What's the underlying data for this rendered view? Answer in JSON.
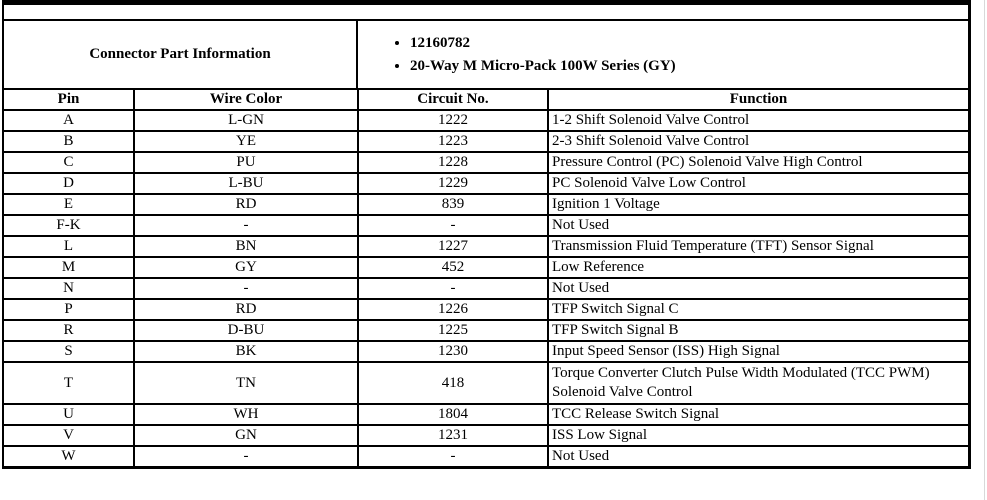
{
  "connector_info": {
    "label": "Connector Part Information",
    "bullets": [
      "12160782",
      "20-Way M Micro-Pack 100W Series (GY)"
    ]
  },
  "pinout": {
    "columns": [
      "Pin",
      "Wire Color",
      "Circuit No.",
      "Function"
    ],
    "rows": [
      {
        "pin": "A",
        "wire_color": "L-GN",
        "circuit_no": "1222",
        "function": "1-2 Shift Solenoid Valve Control"
      },
      {
        "pin": "B",
        "wire_color": "YE",
        "circuit_no": "1223",
        "function": "2-3 Shift Solenoid Valve Control"
      },
      {
        "pin": "C",
        "wire_color": "PU",
        "circuit_no": "1228",
        "function": "Pressure Control (PC) Solenoid Valve High Control"
      },
      {
        "pin": "D",
        "wire_color": "L-BU",
        "circuit_no": "1229",
        "function": "PC Solenoid Valve Low Control"
      },
      {
        "pin": "E",
        "wire_color": "RD",
        "circuit_no": "839",
        "function": "Ignition 1 Voltage"
      },
      {
        "pin": "F-K",
        "wire_color": "-",
        "circuit_no": "-",
        "function": "Not Used"
      },
      {
        "pin": "L",
        "wire_color": "BN",
        "circuit_no": "1227",
        "function": "Transmission Fluid Temperature (TFT) Sensor Signal"
      },
      {
        "pin": "M",
        "wire_color": "GY",
        "circuit_no": "452",
        "function": "Low Reference"
      },
      {
        "pin": "N",
        "wire_color": "-",
        "circuit_no": "-",
        "function": "Not Used"
      },
      {
        "pin": "P",
        "wire_color": "RD",
        "circuit_no": "1226",
        "function": "TFP Switch Signal C"
      },
      {
        "pin": "R",
        "wire_color": "D-BU",
        "circuit_no": "1225",
        "function": "TFP Switch Signal B"
      },
      {
        "pin": "S",
        "wire_color": "BK",
        "circuit_no": "1230",
        "function": "Input Speed Sensor (ISS) High Signal"
      },
      {
        "pin": "T",
        "wire_color": "TN",
        "circuit_no": "418",
        "function": "Torque Converter Clutch Pulse Width Modulated (TCC PWM) Solenoid Valve Control"
      },
      {
        "pin": "U",
        "wire_color": "WH",
        "circuit_no": "1804",
        "function": "TCC Release Switch Signal"
      },
      {
        "pin": "V",
        "wire_color": "GN",
        "circuit_no": "1231",
        "function": "ISS Low Signal"
      },
      {
        "pin": "W",
        "wire_color": "-",
        "circuit_no": "-",
        "function": "Not Used"
      }
    ]
  },
  "colors": {
    "border": "#000000",
    "background": "#ffffff",
    "text": "#000000",
    "page_edge": "#d8d8d8"
  }
}
